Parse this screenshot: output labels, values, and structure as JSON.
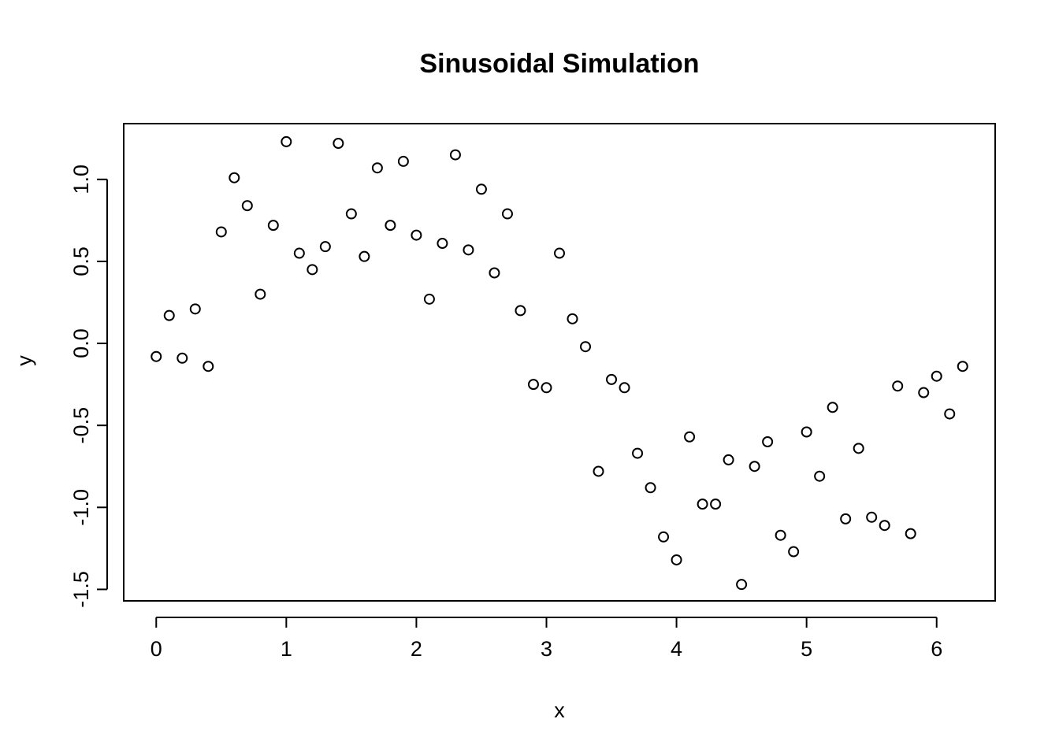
{
  "chart_data": {
    "type": "scatter",
    "title": "Sinusoidal Simulation",
    "xlabel": "x",
    "ylabel": "y",
    "xlim": [
      -0.25,
      6.45
    ],
    "ylim": [
      -1.57,
      1.34
    ],
    "xticks": [
      0,
      1,
      2,
      3,
      4,
      5,
      6
    ],
    "yticks": [
      -1.5,
      -1.0,
      -0.5,
      0.0,
      0.5,
      1.0
    ],
    "xtick_labels": [
      "0",
      "1",
      "2",
      "3",
      "4",
      "5",
      "6"
    ],
    "ytick_labels": [
      "-1.5",
      "-1.0",
      "-0.5",
      "0.0",
      "0.5",
      "1.0"
    ],
    "grid": false,
    "marker": "open-circle",
    "x": [
      0.0,
      0.1,
      0.2,
      0.3,
      0.4,
      0.5,
      0.6,
      0.7,
      0.8,
      0.9,
      1.0,
      1.1,
      1.2,
      1.3,
      1.4,
      1.5,
      1.6,
      1.7,
      1.8,
      1.9,
      2.0,
      2.1,
      2.2,
      2.3,
      2.4,
      2.5,
      2.6,
      2.7,
      2.8,
      2.9,
      3.0,
      3.1,
      3.2,
      3.3,
      3.4,
      3.5,
      3.6,
      3.7,
      3.8,
      3.9,
      4.0,
      4.1,
      4.2,
      4.3,
      4.4,
      4.5,
      4.6,
      4.7,
      4.8,
      4.9,
      5.0,
      5.1,
      5.2,
      5.3,
      5.4,
      5.5,
      5.6,
      5.7,
      5.8,
      5.9,
      6.0,
      6.1,
      6.2
    ],
    "y": [
      -0.08,
      0.17,
      -0.09,
      0.21,
      -0.14,
      0.68,
      1.01,
      0.84,
      0.3,
      0.72,
      1.23,
      0.55,
      0.45,
      0.59,
      1.22,
      0.79,
      0.53,
      1.07,
      0.72,
      1.11,
      0.66,
      0.27,
      0.61,
      1.15,
      0.57,
      0.94,
      0.43,
      0.79,
      0.2,
      -0.25,
      -0.27,
      0.55,
      0.15,
      -0.02,
      -0.78,
      -0.22,
      -0.27,
      -0.67,
      -0.88,
      -1.18,
      -1.32,
      -0.57,
      -0.98,
      -0.98,
      -0.71,
      -1.47,
      -0.75,
      -0.6,
      -1.17,
      -1.27,
      -0.54,
      -0.81,
      -0.39,
      -1.07,
      -0.64,
      -1.06,
      -1.11,
      -0.26,
      -1.16,
      -0.3,
      -0.2,
      -0.43,
      -0.14
    ]
  }
}
